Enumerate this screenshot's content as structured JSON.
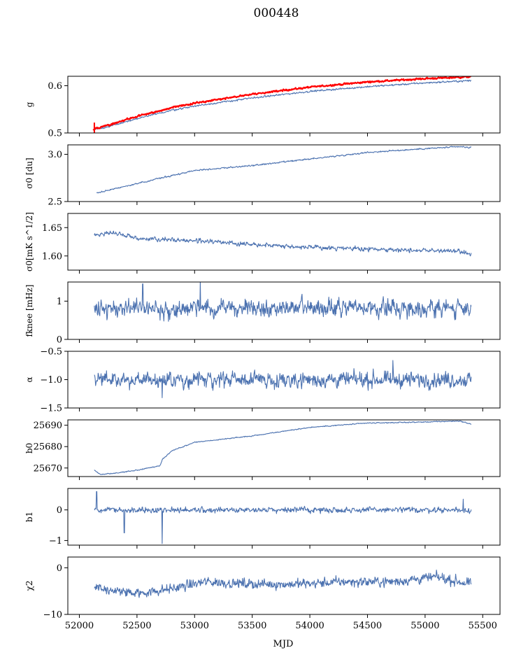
{
  "title": "000448",
  "xlabel": "MJD",
  "x_ticks": [
    52000,
    52500,
    53000,
    53500,
    54000,
    54500,
    55000,
    55500
  ],
  "x_tick_labels": [
    "52000",
    "52500",
    "53000",
    "53500",
    "54000",
    "54500",
    "55000",
    "55500"
  ],
  "colors": {
    "series": "#4c72b0",
    "overlay": "#ff0000"
  },
  "chart_data": [
    {
      "type": "line",
      "id": "g",
      "ylabel": "g",
      "xlim": [
        51900,
        55650
      ],
      "ylim": [
        0.5,
        0.62
      ],
      "y_ticks": [
        0.5,
        0.6
      ],
      "y_tick_labels": [
        "0.5",
        "0.6"
      ],
      "noise": 0.0012,
      "seed": 3,
      "series": [
        {
          "color": "#4c72b0",
          "x": [
            52120,
            52200,
            52500,
            52800,
            53000,
            53500,
            54000,
            54500,
            55000,
            55400
          ],
          "y": [
            0.507,
            0.51,
            0.53,
            0.548,
            0.557,
            0.574,
            0.588,
            0.598,
            0.606,
            0.611
          ]
        },
        {
          "color": "#ff0000",
          "x": [
            52120,
            52200,
            52500,
            52800,
            53000,
            53500,
            54000,
            54500,
            55000,
            55400
          ],
          "y": [
            0.508,
            0.513,
            0.535,
            0.553,
            0.563,
            0.582,
            0.597,
            0.608,
            0.615,
            0.619
          ],
          "spike": {
            "x": 52130,
            "y_min": 0.5,
            "y_max": 0.522
          }
        }
      ]
    },
    {
      "type": "line",
      "id": "sigma0_du",
      "ylabel": "σ0 [du]",
      "xlim": [
        51900,
        55650
      ],
      "ylim": [
        2.5,
        3.1
      ],
      "y_ticks": [
        2.5,
        3.0
      ],
      "y_tick_labels": [
        "2.5",
        "3.0"
      ],
      "noise": 0.005,
      "seed": 5,
      "series": [
        {
          "color": "#4c72b0",
          "x": [
            52150,
            52500,
            53000,
            53500,
            54000,
            54500,
            55000,
            55300,
            55400
          ],
          "y": [
            2.59,
            2.69,
            2.83,
            2.88,
            2.95,
            3.02,
            3.06,
            3.08,
            3.07
          ]
        }
      ]
    },
    {
      "type": "line",
      "id": "sigma0_mk",
      "ylabel": "σ0[mK s^1/2]",
      "xlim": [
        51900,
        55650
      ],
      "ylim": [
        1.575,
        1.675
      ],
      "y_ticks": [
        1.6,
        1.65
      ],
      "y_tick_labels": [
        "1.60",
        "1.65"
      ],
      "noise": 0.0025,
      "seed": 7,
      "series": [
        {
          "color": "#4c72b0",
          "x": [
            52130,
            52300,
            52500,
            53000,
            53500,
            54000,
            54500,
            55000,
            55300,
            55400
          ],
          "y": [
            1.636,
            1.641,
            1.631,
            1.627,
            1.621,
            1.615,
            1.612,
            1.61,
            1.608,
            1.602
          ]
        }
      ]
    },
    {
      "type": "line",
      "id": "fknee",
      "ylabel": "fknee [mHz]",
      "xlim": [
        51900,
        55650
      ],
      "ylim": [
        0,
        1.5
      ],
      "y_ticks": [
        0,
        1
      ],
      "y_tick_labels": [
        "0",
        "1"
      ],
      "noise": 0.15,
      "seed": 11,
      "series": [
        {
          "color": "#4c72b0",
          "x": [
            52130,
            55400
          ],
          "y": [
            0.82,
            0.82
          ],
          "spikes": [
            {
              "x": 52550,
              "y": 1.45
            },
            {
              "x": 53050,
              "y": 1.55
            }
          ]
        }
      ]
    },
    {
      "type": "line",
      "id": "alpha",
      "ylabel": "α",
      "xlim": [
        51900,
        55650
      ],
      "ylim": [
        -1.5,
        -0.5
      ],
      "y_ticks": [
        -1.5,
        -1.0,
        -0.5
      ],
      "y_tick_labels": [
        "−1.5",
        "−1.0",
        "−0.5"
      ],
      "noise": 0.09,
      "seed": 13,
      "series": [
        {
          "color": "#4c72b0",
          "x": [
            52130,
            55400
          ],
          "y": [
            -1.0,
            -1.0
          ],
          "spikes": [
            {
              "x": 54720,
              "y": -0.66
            },
            {
              "x": 52720,
              "y": -1.32
            }
          ]
        }
      ]
    },
    {
      "type": "line",
      "id": "b0",
      "ylabel": "b0",
      "xlim": [
        51900,
        55650
      ],
      "ylim": [
        25666,
        25692.5
      ],
      "y_ticks": [
        25670,
        25680,
        25690
      ],
      "y_tick_labels": [
        "25670",
        "25680",
        "25690"
      ],
      "noise": 0.15,
      "seed": 17,
      "series": [
        {
          "color": "#4c72b0",
          "x": [
            52130,
            52180,
            52300,
            52500,
            52700,
            52720,
            52800,
            53000,
            53500,
            54000,
            54500,
            55000,
            55300,
            55400
          ],
          "y": [
            25669,
            25667,
            25667.5,
            25669,
            25671,
            25674,
            25678,
            25682,
            25685,
            25689,
            25691,
            25691.5,
            25692,
            25690.5
          ]
        }
      ]
    },
    {
      "type": "line",
      "id": "b1",
      "ylabel": "b1",
      "xlim": [
        51900,
        55650
      ],
      "ylim": [
        -1.15,
        0.7
      ],
      "y_ticks": [
        -1,
        0
      ],
      "y_tick_labels": [
        "−1",
        "0"
      ],
      "noise": 0.06,
      "seed": 19,
      "series": [
        {
          "color": "#4c72b0",
          "x": [
            52130,
            55400
          ],
          "y": [
            0.0,
            0.0
          ],
          "spikes": [
            {
              "x": 52150,
              "y": 0.6
            },
            {
              "x": 52390,
              "y": -0.75
            },
            {
              "x": 52720,
              "y": -1.1
            },
            {
              "x": 55330,
              "y": 0.35
            }
          ]
        }
      ]
    },
    {
      "type": "line",
      "id": "chi2",
      "ylabel": "χ2",
      "xlim": [
        51900,
        55650
      ],
      "ylim": [
        -10,
        2.3
      ],
      "y_ticks": [
        -10,
        0
      ],
      "y_tick_labels": [
        "−10",
        "0"
      ],
      "noise": 0.7,
      "seed": 23,
      "series": [
        {
          "color": "#4c72b0",
          "x": [
            52130,
            52300,
            52500,
            52800,
            53100,
            53500,
            53900,
            54300,
            54700,
            55100,
            55400
          ],
          "y": [
            -4,
            -5,
            -5.5,
            -4.5,
            -3,
            -3.5,
            -3.5,
            -3,
            -3,
            -2,
            -3.5
          ]
        }
      ]
    }
  ]
}
